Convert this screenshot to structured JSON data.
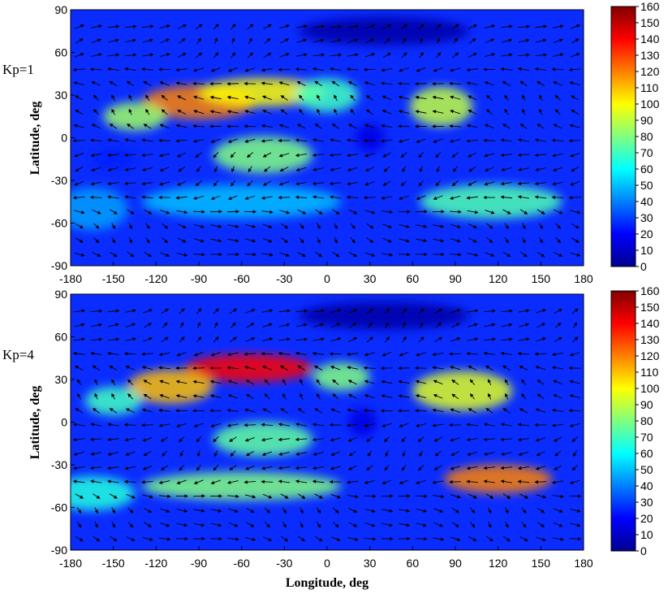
{
  "chart_data": [
    {
      "type": "heatmap",
      "panel_label": "Kp=1",
      "xlabel": "",
      "ylabel": "Latitude, deg",
      "xlim": [
        -180,
        180
      ],
      "ylim": [
        -90,
        90
      ],
      "x_ticks": [
        -180,
        -150,
        -120,
        -90,
        -60,
        -30,
        0,
        30,
        60,
        90,
        120,
        150,
        180
      ],
      "y_ticks": [
        -90,
        -60,
        -30,
        0,
        30,
        60,
        90
      ],
      "colorbar": {
        "min": 0,
        "max": 160,
        "ticks": [
          0,
          10,
          20,
          30,
          40,
          50,
          60,
          70,
          80,
          90,
          100,
          110,
          120,
          130,
          140,
          150,
          160
        ]
      },
      "features": [
        {
          "lon": -90,
          "lat": 25,
          "value": 120,
          "slon": 40,
          "slat": 12
        },
        {
          "lon": -45,
          "lat": 32,
          "value": 100,
          "slon": 45,
          "slat": 10
        },
        {
          "lon": -135,
          "lat": 15,
          "value": 85,
          "slon": 22,
          "slat": 10
        },
        {
          "lon": 0,
          "lat": 30,
          "value": 70,
          "slon": 22,
          "slat": 12
        },
        {
          "lon": 80,
          "lat": 22,
          "value": 90,
          "slon": 22,
          "slat": 14
        },
        {
          "lon": -45,
          "lat": -12,
          "value": 80,
          "slon": 35,
          "slat": 13
        },
        {
          "lon": 115,
          "lat": -45,
          "value": 72,
          "slon": 50,
          "slat": 12
        },
        {
          "lon": -60,
          "lat": -45,
          "value": 50,
          "slon": 70,
          "slat": 12
        },
        {
          "lon": -165,
          "lat": -50,
          "value": 45,
          "slon": 25,
          "slat": 15
        }
      ],
      "troughs": [
        {
          "lon": 30,
          "lat": 0,
          "value": 15,
          "slon": 10,
          "slat": 10
        },
        {
          "lon": -150,
          "lat": -15,
          "value": 25,
          "slon": 15,
          "slat": 8
        },
        {
          "lon": 40,
          "lat": 75,
          "value": 5,
          "slon": 60,
          "slat": 10
        }
      ]
    },
    {
      "type": "heatmap",
      "panel_label": "Kp=4",
      "xlabel": "Longitude, deg",
      "ylabel": "Latitude, deg",
      "xlim": [
        -180,
        180
      ],
      "ylim": [
        -90,
        90
      ],
      "x_ticks": [
        -180,
        -150,
        -120,
        -90,
        -60,
        -30,
        0,
        30,
        60,
        90,
        120,
        150,
        180
      ],
      "y_ticks": [
        -90,
        -60,
        -30,
        0,
        30,
        60,
        90
      ],
      "colorbar": {
        "min": 0,
        "max": 160,
        "ticks": [
          0,
          10,
          20,
          30,
          40,
          50,
          60,
          70,
          80,
          90,
          100,
          110,
          120,
          130,
          140,
          150,
          160
        ]
      },
      "features": [
        {
          "lon": -55,
          "lat": 38,
          "value": 140,
          "slon": 45,
          "slat": 10
        },
        {
          "lon": -110,
          "lat": 25,
          "value": 110,
          "slon": 30,
          "slat": 12
        },
        {
          "lon": -150,
          "lat": 15,
          "value": 70,
          "slon": 20,
          "slat": 10
        },
        {
          "lon": 10,
          "lat": 32,
          "value": 80,
          "slon": 20,
          "slat": 10
        },
        {
          "lon": 95,
          "lat": 22,
          "value": 95,
          "slon": 35,
          "slat": 14
        },
        {
          "lon": -45,
          "lat": -12,
          "value": 75,
          "slon": 35,
          "slat": 12
        },
        {
          "lon": 120,
          "lat": -40,
          "value": 120,
          "slon": 38,
          "slat": 10
        },
        {
          "lon": -60,
          "lat": -45,
          "value": 80,
          "slon": 70,
          "slat": 10
        },
        {
          "lon": -165,
          "lat": -50,
          "value": 65,
          "slon": 30,
          "slat": 12
        }
      ],
      "troughs": [
        {
          "lon": 25,
          "lat": 0,
          "value": 15,
          "slon": 10,
          "slat": 10
        },
        {
          "lon": 40,
          "lat": 75,
          "value": 5,
          "slon": 60,
          "slat": 10
        }
      ]
    }
  ]
}
